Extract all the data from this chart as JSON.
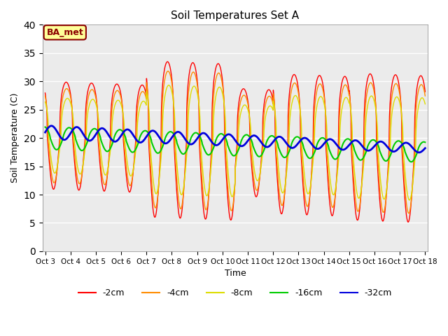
{
  "title": "Soil Temperatures Set A",
  "xlabel": "Time",
  "ylabel": "Soil Temperature (C)",
  "ylim": [
    0,
    40
  ],
  "xtick_labels": [
    "Oct 3",
    "Oct 4",
    "Oct 5",
    "Oct 6",
    "Oct 7",
    "Oct 8",
    "Oct 9",
    "Oct 10",
    "Oct 11",
    "Oct 12",
    "Oct 13",
    "Oct 14",
    "Oct 15",
    "Oct 16",
    "Oct 17",
    "Oct 18"
  ],
  "annotation_text": "BA_met",
  "annotation_color": "#8B0000",
  "annotation_bg": "#FFFF99",
  "bg_color": "#EBEBEB",
  "series": {
    "-2cm": {
      "color": "#FF0000",
      "lw": 1.0
    },
    "-4cm": {
      "color": "#FF8C00",
      "lw": 1.0
    },
    "-8cm": {
      "color": "#DDDD00",
      "lw": 1.0
    },
    "-16cm": {
      "color": "#00CC00",
      "lw": 1.5
    },
    "-32cm": {
      "color": "#0000DD",
      "lw": 2.0
    }
  }
}
